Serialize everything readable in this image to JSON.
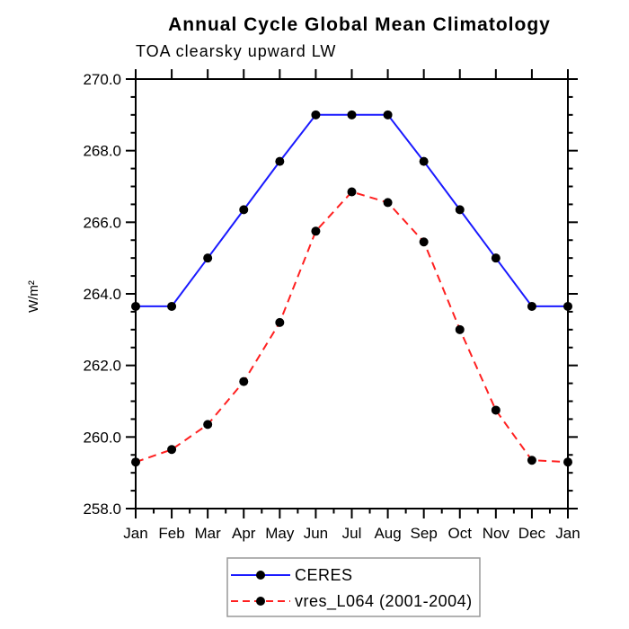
{
  "chart_data": {
    "type": "line",
    "title": "Annual Cycle Global Mean Climatology",
    "subtitle": "TOA clearsky upward LW",
    "ylabel": "W/m²",
    "xlabel": "",
    "x_categories": [
      "Jan",
      "Feb",
      "Mar",
      "Apr",
      "May",
      "Jun",
      "Jul",
      "Aug",
      "Sep",
      "Oct",
      "Nov",
      "Dec",
      "Jan"
    ],
    "ylim": [
      258.0,
      270.0
    ],
    "ytick_step": 2.0,
    "ytick_minor_step": 0.5,
    "ytick_labels": [
      "258.0",
      "260.0",
      "262.0",
      "264.0",
      "266.0",
      "268.0",
      "270.0"
    ],
    "xtick_minor_per_interval": 1,
    "grid": false,
    "axis_color": "#000000",
    "marker": {
      "shape": "circle",
      "color": "#000000",
      "radius": 5
    },
    "legend": {
      "position": "bottom-center",
      "border_color": "#999999",
      "background": "#ffffff"
    },
    "series": [
      {
        "name": "CERES",
        "color": "#1a1aff",
        "line_style": "solid",
        "values": [
          263.65,
          263.65,
          265.0,
          266.35,
          267.7,
          269.0,
          269.0,
          269.0,
          267.7,
          266.35,
          265.0,
          263.65,
          263.65
        ]
      },
      {
        "name": "vres_L064 (2001-2004)",
        "color": "#ff2020",
        "line_style": "dashed",
        "values": [
          259.3,
          259.65,
          260.35,
          261.55,
          263.2,
          265.75,
          266.85,
          266.55,
          265.45,
          263.0,
          260.75,
          259.35,
          259.3
        ]
      }
    ]
  }
}
